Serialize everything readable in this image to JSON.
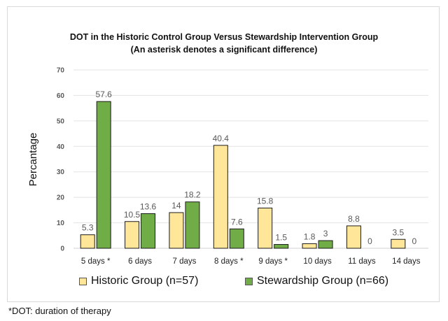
{
  "chart_data": {
    "type": "bar",
    "title": "DOT in the Historic Control Group Versus Stewardship Intervention Group",
    "subtitle": "(An asterisk denotes a significant difference)",
    "xlabel": "",
    "ylabel": "Percantage",
    "ylim": [
      0,
      70
    ],
    "yticks": [
      0,
      10,
      20,
      30,
      40,
      50,
      60,
      70
    ],
    "grid": true,
    "legend_position": "bottom",
    "categories": [
      "5 days *",
      "6 days",
      "7 days",
      "8 days *",
      "9 days *",
      "10 days",
      "11 days",
      "14 days"
    ],
    "series": [
      {
        "name": "Historic Group (n=57)",
        "color": "#FFE699",
        "values": [
          5.3,
          10.5,
          14,
          40.4,
          15.8,
          1.8,
          8.8,
          3.5
        ],
        "labels": [
          "5.3",
          "10.5",
          "14",
          "40.4",
          "15.8",
          "1.8",
          "8.8",
          "3.5"
        ]
      },
      {
        "name": "Stewardship Group (n=66)",
        "color": "#70AD47",
        "values": [
          57.6,
          13.6,
          18.2,
          7.6,
          1.5,
          3,
          0,
          0
        ],
        "labels": [
          "57.6",
          "13.6",
          "18.2",
          "7.6",
          "1.5",
          "3",
          "0",
          "0"
        ]
      }
    ]
  },
  "footnote": "*DOT: duration of therapy"
}
